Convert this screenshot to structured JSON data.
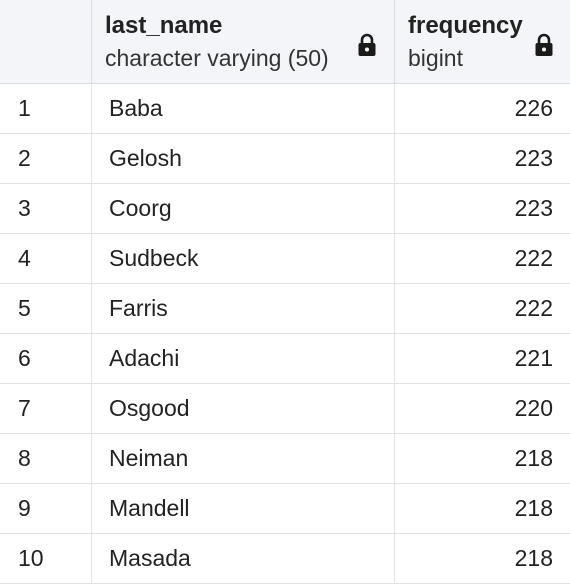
{
  "columns": {
    "last_name": {
      "name": "last_name",
      "type": "character varying (50)"
    },
    "frequency": {
      "name": "frequency",
      "type": "bigint"
    }
  },
  "rows": [
    {
      "num": "1",
      "last_name": "Baba",
      "frequency": "226"
    },
    {
      "num": "2",
      "last_name": "Gelosh",
      "frequency": "223"
    },
    {
      "num": "3",
      "last_name": "Coorg",
      "frequency": "223"
    },
    {
      "num": "4",
      "last_name": "Sudbeck",
      "frequency": "222"
    },
    {
      "num": "5",
      "last_name": "Farris",
      "frequency": "222"
    },
    {
      "num": "6",
      "last_name": "Adachi",
      "frequency": "221"
    },
    {
      "num": "7",
      "last_name": "Osgood",
      "frequency": "220"
    },
    {
      "num": "8",
      "last_name": "Neiman",
      "frequency": "218"
    },
    {
      "num": "9",
      "last_name": "Mandell",
      "frequency": "218"
    },
    {
      "num": "10",
      "last_name": "Masada",
      "frequency": "218"
    }
  ],
  "icons": {
    "column_lock": "lock-icon"
  },
  "colors": {
    "header_bg": "#f3f5f9",
    "grid_line": "#dfe3e8",
    "text": "#222222"
  }
}
